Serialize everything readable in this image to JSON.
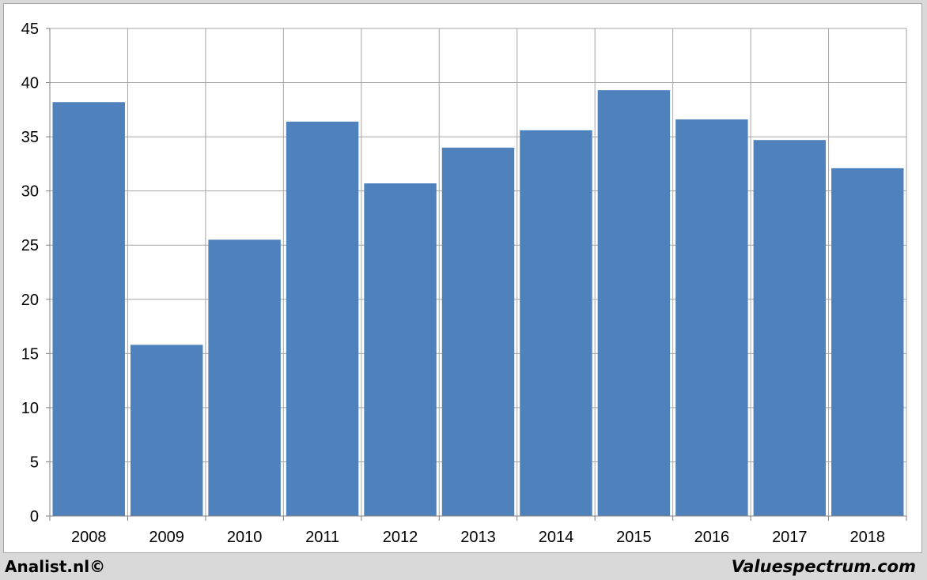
{
  "chart_data": {
    "type": "bar",
    "categories": [
      "2008",
      "2009",
      "2010",
      "2011",
      "2012",
      "2013",
      "2014",
      "2015",
      "2016",
      "2017",
      "2018"
    ],
    "values": [
      38.2,
      15.8,
      25.5,
      36.4,
      30.7,
      34.0,
      35.6,
      39.3,
      36.6,
      34.7,
      32.1
    ],
    "title": "",
    "xlabel": "",
    "ylabel": "",
    "ylim": [
      0,
      45
    ],
    "yticks": [
      "0",
      "5",
      "10",
      "15",
      "20",
      "25",
      "30",
      "35",
      "40",
      "45"
    ],
    "grid": true,
    "legend": "none",
    "bar_color": "#4f81bd",
    "grid_color": "#a6a6a6"
  },
  "footer": {
    "left": "Analist.nl©",
    "right": "Valuespectrum.com"
  }
}
